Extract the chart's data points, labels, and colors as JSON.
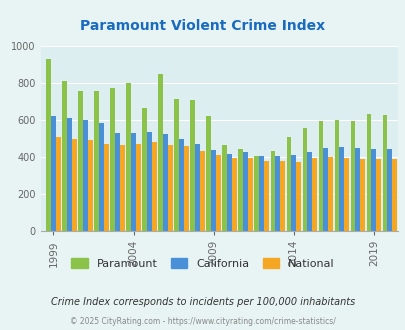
{
  "title": "Paramount Violent Crime Index",
  "title_color": "#1a6bbf",
  "years": [
    1999,
    2000,
    2001,
    2002,
    2003,
    2004,
    2005,
    2006,
    2007,
    2008,
    2009,
    2010,
    2011,
    2012,
    2013,
    2014,
    2015,
    2016,
    2017,
    2018,
    2019,
    2020
  ],
  "paramount": [
    930,
    810,
    760,
    755,
    775,
    800,
    665,
    850,
    715,
    710,
    620,
    465,
    445,
    405,
    435,
    510,
    560,
    595,
    600,
    595,
    635,
    630
  ],
  "california": [
    620,
    610,
    600,
    585,
    530,
    530,
    535,
    525,
    500,
    470,
    440,
    415,
    430,
    405,
    405,
    410,
    430,
    450,
    455,
    450,
    445,
    445
  ],
  "national": [
    510,
    500,
    495,
    470,
    465,
    470,
    480,
    465,
    460,
    435,
    410,
    395,
    395,
    380,
    380,
    375,
    395,
    400,
    395,
    390,
    390,
    390
  ],
  "paramount_color": "#8bc34a",
  "california_color": "#4a90d9",
  "national_color": "#f5a623",
  "bg_color": "#e8f4f4",
  "plot_bg_color": "#ddeef0",
  "ylim": [
    0,
    1000
  ],
  "yticks": [
    0,
    200,
    400,
    600,
    800,
    1000
  ],
  "xtick_years": [
    1999,
    2004,
    2009,
    2014,
    2019
  ],
  "footnote1": "Crime Index corresponds to incidents per 100,000 inhabitants",
  "footnote2": "© 2025 CityRating.com - https://www.cityrating.com/crime-statistics/",
  "legend_labels": [
    "Paramount",
    "California",
    "National"
  ]
}
